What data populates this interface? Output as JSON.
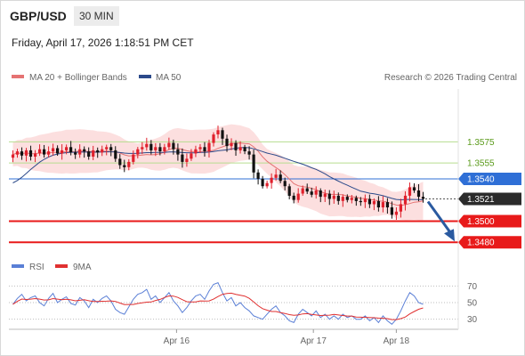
{
  "header": {
    "symbol": "GBP/USD",
    "timeframe": "30 MIN",
    "datetime": "Friday, April 17, 2026 1:18:51 PM CET"
  },
  "legend": {
    "ma20": "MA 20 + Bollinger Bands",
    "ma50": "MA 50",
    "copyright": "Research © 2026 Trading Central",
    "rsi": "RSI",
    "ma9": "9MA"
  },
  "colors": {
    "up": "#e0202c",
    "down": "#111111",
    "ma20": "#e57373",
    "band_fill": "#fbd9d9",
    "ma50": "#2c4a8a",
    "level_green": "#b6dd8f",
    "level_green_text": "#5a9a1a",
    "level_blue": "#2f6fd6",
    "level_red": "#e81a1a",
    "current_dark": "#2b2b2b",
    "arrow": "#2a5aa0",
    "rsi_line": "#5a7fd6",
    "rsi_ma": "#e03030"
  },
  "chart_data": [
    {
      "type": "candlestick",
      "title": "GBP/USD 30 MIN",
      "y_range": [
        1.3465,
        1.3625
      ],
      "x_range": [
        0,
        100
      ],
      "levels": [
        {
          "value": 1.3575,
          "label": "1.3575",
          "kind": "resistance"
        },
        {
          "value": 1.3555,
          "label": "1.3555",
          "kind": "resistance"
        },
        {
          "value": 1.354,
          "label": "1.3540",
          "kind": "pivot"
        },
        {
          "value": 1.3521,
          "label": "1.3521",
          "kind": "current"
        },
        {
          "value": 1.35,
          "label": "1.3500",
          "kind": "support"
        },
        {
          "value": 1.348,
          "label": "1.3480",
          "kind": "support"
        }
      ],
      "x_ticks": [
        {
          "x": 40,
          "label": "Apr 16"
        },
        {
          "x": 73,
          "label": "Apr 17"
        },
        {
          "x": 93,
          "label": "Apr 18"
        }
      ],
      "closes": [
        1.3563,
        1.3566,
        1.3562,
        1.3567,
        1.3561,
        1.3564,
        1.3568,
        1.3563,
        1.3566,
        1.3569,
        1.3564,
        1.3567,
        1.357,
        1.3565,
        1.3563,
        1.3568,
        1.3566,
        1.3561,
        1.3567,
        1.3565,
        1.3568,
        1.357,
        1.3567,
        1.3559,
        1.3553,
        1.3551,
        1.3556,
        1.3563,
        1.3568,
        1.357,
        1.3573,
        1.3567,
        1.357,
        1.3566,
        1.357,
        1.3574,
        1.3568,
        1.3563,
        1.3556,
        1.3559,
        1.3564,
        1.3568,
        1.357,
        1.3566,
        1.3574,
        1.3582,
        1.3586,
        1.3578,
        1.3571,
        1.3574,
        1.3567,
        1.357,
        1.3566,
        1.3563,
        1.3546,
        1.354,
        1.3533,
        1.3536,
        1.3541,
        1.3544,
        1.3538,
        1.3533,
        1.3524,
        1.352,
        1.3526,
        1.3531,
        1.3528,
        1.3525,
        1.3529,
        1.3523,
        1.3526,
        1.3521,
        1.3524,
        1.3519,
        1.3523,
        1.352,
        1.3522,
        1.3519,
        1.3518,
        1.3521,
        1.3516,
        1.3519,
        1.3513,
        1.3518,
        1.3513,
        1.3506,
        1.3509,
        1.3516,
        1.3524,
        1.3532,
        1.3529,
        1.3523,
        1.3521
      ],
      "ma20_band_half_width": 0.0016,
      "ma50_start_value": 1.3535,
      "forecast_arrow": {
        "from": 1.3521,
        "to": 1.348
      }
    },
    {
      "type": "line",
      "title": "RSI",
      "y_range": [
        20,
        80
      ],
      "y_ticks": [
        70,
        50,
        30
      ],
      "series": [
        {
          "name": "RSI",
          "values": [
            48,
            55,
            60,
            52,
            56,
            58,
            50,
            46,
            55,
            61,
            50,
            54,
            57,
            49,
            47,
            56,
            52,
            44,
            54,
            50,
            55,
            58,
            52,
            42,
            38,
            36,
            45,
            54,
            60,
            62,
            66,
            54,
            58,
            50,
            56,
            62,
            52,
            46,
            38,
            44,
            52,
            58,
            60,
            54,
            64,
            72,
            74,
            62,
            52,
            56,
            46,
            50,
            44,
            40,
            34,
            32,
            30,
            36,
            42,
            46,
            38,
            34,
            28,
            26,
            36,
            42,
            38,
            34,
            40,
            32,
            36,
            30,
            34,
            30,
            36,
            32,
            34,
            30,
            30,
            34,
            28,
            32,
            26,
            34,
            28,
            24,
            30,
            40,
            52,
            62,
            58,
            50,
            48
          ]
        },
        {
          "name": "9MA",
          "values": []
        }
      ]
    }
  ]
}
